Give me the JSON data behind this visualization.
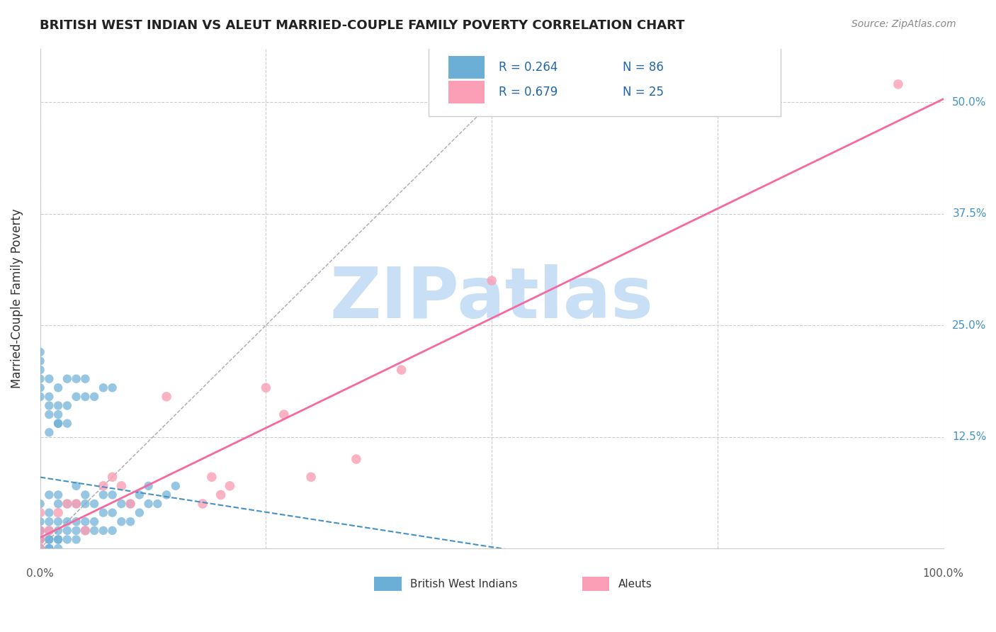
{
  "title": "BRITISH WEST INDIAN VS ALEUT MARRIED-COUPLE FAMILY POVERTY CORRELATION CHART",
  "source": "Source: ZipAtlas.com",
  "ylabel": "Married-Couple Family Poverty",
  "xlim": [
    0,
    1.0
  ],
  "ylim": [
    0,
    0.56
  ],
  "xticks": [
    0,
    0.25,
    0.5,
    0.75,
    1.0
  ],
  "yticks": [
    0,
    0.125,
    0.25,
    0.375,
    0.5
  ],
  "yticklabels": [
    "",
    "12.5%",
    "25.0%",
    "37.5%",
    "50.0%"
  ],
  "grid_color": "#cccccc",
  "background_color": "#ffffff",
  "watermark": "ZIPatlas",
  "watermark_color": "#c8dff5",
  "blue_color": "#6baed6",
  "pink_color": "#fa9fb5",
  "blue_line_color": "#4292c6",
  "pink_line_color": "#f768a1",
  "dot_size": 80,
  "blue_points_x": [
    0.0,
    0.0,
    0.0,
    0.0,
    0.0,
    0.0,
    0.0,
    0.0,
    0.0,
    0.0,
    0.0,
    0.0,
    0.01,
    0.01,
    0.01,
    0.01,
    0.01,
    0.01,
    0.01,
    0.01,
    0.02,
    0.02,
    0.02,
    0.02,
    0.02,
    0.02,
    0.02,
    0.03,
    0.03,
    0.03,
    0.03,
    0.04,
    0.04,
    0.04,
    0.04,
    0.04,
    0.05,
    0.05,
    0.05,
    0.05,
    0.06,
    0.06,
    0.06,
    0.07,
    0.07,
    0.07,
    0.08,
    0.08,
    0.08,
    0.09,
    0.09,
    0.1,
    0.1,
    0.11,
    0.11,
    0.12,
    0.12,
    0.13,
    0.14,
    0.15,
    0.02,
    0.03,
    0.04,
    0.05,
    0.06,
    0.07,
    0.08,
    0.01,
    0.02,
    0.03,
    0.04,
    0.05,
    0.0,
    0.01,
    0.0,
    0.0,
    0.0,
    0.01,
    0.02,
    0.03,
    0.01,
    0.02,
    0.02,
    0.01,
    0.0,
    0.0
  ],
  "blue_points_y": [
    0.0,
    0.0,
    0.0,
    0.0,
    0.01,
    0.01,
    0.01,
    0.02,
    0.02,
    0.02,
    0.03,
    0.05,
    0.0,
    0.0,
    0.01,
    0.01,
    0.02,
    0.03,
    0.04,
    0.06,
    0.0,
    0.01,
    0.01,
    0.02,
    0.03,
    0.05,
    0.06,
    0.01,
    0.02,
    0.03,
    0.05,
    0.01,
    0.02,
    0.03,
    0.05,
    0.07,
    0.02,
    0.03,
    0.05,
    0.06,
    0.02,
    0.03,
    0.05,
    0.02,
    0.04,
    0.06,
    0.02,
    0.04,
    0.06,
    0.03,
    0.05,
    0.03,
    0.05,
    0.04,
    0.06,
    0.05,
    0.07,
    0.05,
    0.06,
    0.07,
    0.14,
    0.16,
    0.17,
    0.17,
    0.17,
    0.18,
    0.18,
    0.17,
    0.18,
    0.19,
    0.19,
    0.19,
    0.19,
    0.19,
    0.2,
    0.21,
    0.22,
    0.13,
    0.14,
    0.14,
    0.15,
    0.15,
    0.16,
    0.16,
    0.17,
    0.18
  ],
  "pink_points_x": [
    0.0,
    0.0,
    0.0,
    0.0,
    0.01,
    0.02,
    0.03,
    0.04,
    0.05,
    0.07,
    0.08,
    0.09,
    0.1,
    0.14,
    0.18,
    0.19,
    0.2,
    0.21,
    0.25,
    0.27,
    0.3,
    0.35,
    0.4,
    0.5,
    0.95
  ],
  "pink_points_y": [
    0.0,
    0.01,
    0.02,
    0.04,
    0.02,
    0.04,
    0.05,
    0.05,
    0.02,
    0.07,
    0.08,
    0.07,
    0.05,
    0.17,
    0.05,
    0.08,
    0.06,
    0.07,
    0.18,
    0.15,
    0.08,
    0.1,
    0.2,
    0.3,
    0.52
  ]
}
